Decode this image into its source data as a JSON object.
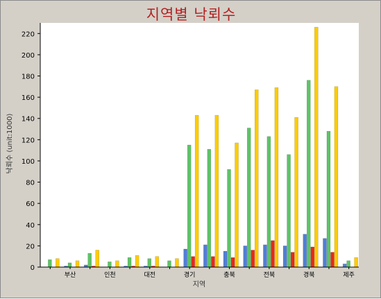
{
  "chart_data": {
    "type": "bar",
    "title": "지역별 낙뢰수",
    "xlabel": "지역",
    "ylabel": "낙뢰수 (unit:1000)",
    "ylim": [
      0,
      230
    ],
    "yticks": [
      0,
      20,
      40,
      60,
      80,
      100,
      120,
      140,
      160,
      180,
      200,
      220
    ],
    "grid": false,
    "legend": "none",
    "categories": [
      "",
      "부산",
      "",
      "인천",
      "",
      "대전",
      "",
      "경기",
      "",
      "충북",
      "",
      "전북",
      "",
      "경북",
      "",
      "제주"
    ],
    "series": [
      {
        "color": "#4f7fd6",
        "values": [
          0,
          1,
          2,
          0,
          1,
          1,
          0,
          17,
          21,
          15,
          20,
          21,
          20,
          31,
          27,
          3
        ]
      },
      {
        "color": "#5cc466",
        "values": [
          7,
          4,
          13,
          5,
          9,
          8,
          6,
          115,
          111,
          92,
          131,
          123,
          106,
          176,
          128,
          6
        ]
      },
      {
        "color": "#e8271c",
        "values": [
          0,
          0,
          1,
          0,
          1,
          1,
          0,
          10,
          10,
          9,
          16,
          25,
          14,
          19,
          14,
          0
        ]
      },
      {
        "color": "#ffcc00",
        "values": [
          8,
          6,
          16,
          6,
          11,
          10,
          8,
          143,
          143,
          117,
          167,
          169,
          141,
          226,
          170,
          9
        ]
      }
    ]
  }
}
